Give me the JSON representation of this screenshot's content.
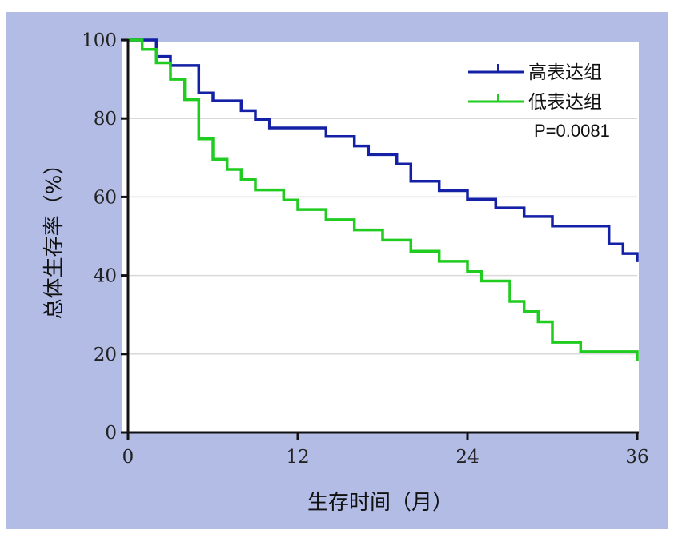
{
  "chart_data": {
    "type": "line",
    "subtype": "kaplan-meier step",
    "xlabel": "生存时间（月）",
    "ylabel": "总体生存率（%）",
    "xlim": [
      0,
      36
    ],
    "ylim": [
      0,
      100
    ],
    "xticks": [
      "0",
      "12",
      "24",
      "36"
    ],
    "yticks": [
      "0",
      "20",
      "40",
      "60",
      "80",
      "100"
    ],
    "grid": "horizontal",
    "legend_position": "top-right",
    "annotation": "P=0.0081",
    "series": [
      {
        "name": "高表达组",
        "color": "#1420a6",
        "points": [
          [
            0,
            100
          ],
          [
            2,
            100
          ],
          [
            2,
            95.8
          ],
          [
            3,
            95.8
          ],
          [
            3,
            93.5
          ],
          [
            5,
            93.5
          ],
          [
            5,
            86.5
          ],
          [
            6,
            86.5
          ],
          [
            6,
            84.5
          ],
          [
            8,
            84.5
          ],
          [
            8,
            82
          ],
          [
            9,
            82
          ],
          [
            9,
            79.8
          ],
          [
            10,
            79.8
          ],
          [
            10,
            77.6
          ],
          [
            14,
            77.6
          ],
          [
            14,
            75.4
          ],
          [
            16,
            75.4
          ],
          [
            16,
            73
          ],
          [
            17,
            73
          ],
          [
            17,
            70.8
          ],
          [
            19,
            70.8
          ],
          [
            19,
            68.4
          ],
          [
            20,
            68.4
          ],
          [
            20,
            64
          ],
          [
            22,
            64
          ],
          [
            22,
            61.6
          ],
          [
            24,
            61.6
          ],
          [
            24,
            59.4
          ],
          [
            26,
            59.4
          ],
          [
            26,
            57.2
          ],
          [
            28,
            57.2
          ],
          [
            28,
            55
          ],
          [
            30,
            55
          ],
          [
            30,
            52.6
          ],
          [
            34,
            52.6
          ],
          [
            34,
            48
          ],
          [
            35,
            48
          ],
          [
            35,
            45.6
          ],
          [
            36,
            45.6
          ],
          [
            36,
            43.4
          ]
        ]
      },
      {
        "name": "低表达组",
        "color": "#1fcc1f",
        "points": [
          [
            0,
            100
          ],
          [
            1,
            100
          ],
          [
            1,
            97.6
          ],
          [
            2,
            97.6
          ],
          [
            2,
            94.2
          ],
          [
            3,
            94.2
          ],
          [
            3,
            90
          ],
          [
            4,
            90
          ],
          [
            4,
            84.8
          ],
          [
            5,
            84.8
          ],
          [
            5,
            74.8
          ],
          [
            6,
            74.8
          ],
          [
            6,
            69.6
          ],
          [
            7,
            69.6
          ],
          [
            7,
            67
          ],
          [
            8,
            67
          ],
          [
            8,
            64.4
          ],
          [
            9,
            64.4
          ],
          [
            9,
            61.8
          ],
          [
            11,
            61.8
          ],
          [
            11,
            59.2
          ],
          [
            12,
            59.2
          ],
          [
            12,
            56.8
          ],
          [
            14,
            56.8
          ],
          [
            14,
            54.2
          ],
          [
            16,
            54.2
          ],
          [
            16,
            51.6
          ],
          [
            18,
            51.6
          ],
          [
            18,
            49
          ],
          [
            20,
            49
          ],
          [
            20,
            46.2
          ],
          [
            22,
            46.2
          ],
          [
            22,
            43.6
          ],
          [
            24,
            43.6
          ],
          [
            24,
            41
          ],
          [
            25,
            41
          ],
          [
            25,
            38.6
          ],
          [
            27,
            38.6
          ],
          [
            27,
            33.4
          ],
          [
            28,
            33.4
          ],
          [
            28,
            30.8
          ],
          [
            29,
            30.8
          ],
          [
            29,
            28.2
          ],
          [
            30,
            28.2
          ],
          [
            30,
            23
          ],
          [
            32,
            23
          ],
          [
            32,
            20.6
          ],
          [
            36,
            20.6
          ],
          [
            36,
            18.2
          ]
        ]
      }
    ]
  }
}
